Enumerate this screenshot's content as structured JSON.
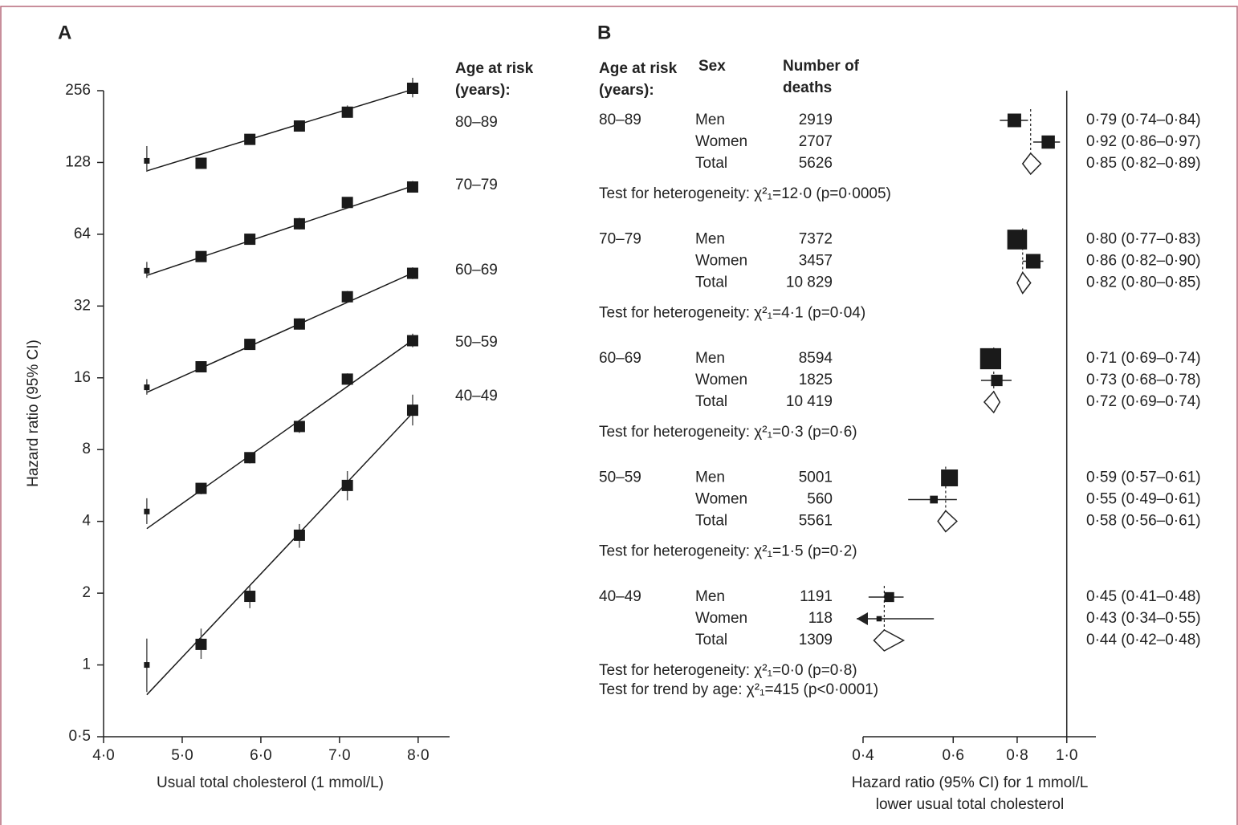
{
  "chart_data": [
    {
      "type": "line",
      "panel_label": "A",
      "x_label": "Usual total cholesterol (1 mmol/L)",
      "y_label": "Hazard ratio (95% CI)",
      "legend_title": [
        "Age at risk",
        "(years):"
      ],
      "log_scale_y": true,
      "color": "#1a1a1a",
      "x": [
        4.55,
        5.24,
        5.86,
        6.49,
        7.1,
        7.93
      ],
      "xlim": [
        4.0,
        8.4
      ],
      "xticks": [
        {
          "value": 4,
          "label": "4·0"
        },
        {
          "value": 5,
          "label": "5·0"
        },
        {
          "value": 6,
          "label": "6·0"
        },
        {
          "value": 7,
          "label": "7·0"
        },
        {
          "value": 8,
          "label": "8·0"
        }
      ],
      "ylim": [
        0.5,
        256
      ],
      "yticks": [
        {
          "value": 0.5,
          "label": "0·5"
        },
        1,
        2,
        4,
        8,
        16,
        32,
        64,
        128,
        256
      ],
      "series": [
        {
          "name": "80–89",
          "values": [
            130,
            127,
            160,
            182,
            208,
            262
          ],
          "ci_low": [
            117,
            122,
            153,
            175,
            198,
            240
          ],
          "ci_high": [
            150,
            133,
            168,
            190,
            222,
            290
          ],
          "fit": {
            "x": [
              4.55,
              7.93
            ],
            "y": [
              118,
              259
            ]
          }
        },
        {
          "name": "70–79",
          "values": [
            45,
            51.6,
            61,
            70.8,
            87,
            101
          ],
          "ci_low": [
            42,
            49,
            58,
            67,
            83,
            96
          ],
          "ci_high": [
            49,
            54,
            64,
            75,
            91,
            107
          ],
          "fit": {
            "x": [
              4.55,
              7.93
            ],
            "y": [
              43,
              102
            ]
          }
        },
        {
          "name": "60–69",
          "values": [
            14.6,
            17.8,
            22.1,
            26.9,
            35,
            43.9
          ],
          "ci_low": [
            13.6,
            17,
            21,
            25.5,
            33,
            41.5
          ],
          "ci_high": [
            15.8,
            18.7,
            23.2,
            28.4,
            37,
            46.5
          ],
          "fit": {
            "x": [
              4.55,
              7.93
            ],
            "y": [
              13.9,
              44
            ]
          }
        },
        {
          "name": "50–59",
          "values": [
            4.4,
            5.5,
            7.4,
            10.0,
            15.8,
            22.9
          ],
          "ci_low": [
            3.9,
            5.2,
            7,
            9.4,
            15,
            21.5
          ],
          "ci_high": [
            5.0,
            5.8,
            7.8,
            10.6,
            16.7,
            24.5
          ],
          "fit": {
            "x": [
              4.55,
              7.93
            ],
            "y": [
              3.73,
              23
            ]
          }
        },
        {
          "name": "40–49",
          "values": [
            1.0,
            1.22,
            1.94,
            3.5,
            5.66,
            11.7
          ],
          "ci_low": [
            0.77,
            1.06,
            1.73,
            3.1,
            4.9,
            10.1
          ],
          "ci_high": [
            1.29,
            1.42,
            2.14,
            3.9,
            6.5,
            13.6
          ],
          "fit": {
            "x": [
              4.55,
              7.93
            ],
            "y": [
              0.75,
              11.4
            ]
          }
        }
      ]
    },
    {
      "type": "forest",
      "panel_label": "B",
      "headers": {
        "age": [
          "Age at risk",
          "(years):"
        ],
        "sex": "Sex",
        "deaths": [
          "Number of",
          "deaths"
        ]
      },
      "x_label": [
        "Hazard ratio (95% CI) for 1 mmol/L",
        "lower usual total cholesterol"
      ],
      "log_scale_x": true,
      "color": "#1a1a1a",
      "reference": 1,
      "xlim": [
        0.4,
        1.14
      ],
      "xticks": [
        {
          "value": 0.4,
          "label": "0·4"
        },
        {
          "value": 0.6,
          "label": "0·6"
        },
        {
          "value": 0.8,
          "label": "0·8"
        },
        {
          "value": 1.0,
          "label": "1·0"
        }
      ],
      "groups": [
        {
          "name": "80–89",
          "heterogeneity": "Test for heterogeneity: χ²₁=12·0 (p=0·0005)",
          "rows": [
            {
              "sex": "Men",
              "deaths": 2919,
              "hr": 0.79,
              "lo": 0.74,
              "hi": 0.84,
              "label": "0·79 (0·74–0·84)"
            },
            {
              "sex": "Women",
              "deaths": 2707,
              "hr": 0.92,
              "lo": 0.86,
              "hi": 0.97,
              "label": "0·92 (0·86–0·97)"
            },
            {
              "sex": "Total",
              "deaths": 5626,
              "hr": 0.85,
              "lo": 0.82,
              "hi": 0.89,
              "label": "0·85 (0·82–0·89)"
            }
          ]
        },
        {
          "name": "70–79",
          "heterogeneity": "Test for heterogeneity: χ²₁=4·1 (p=0·04)",
          "rows": [
            {
              "sex": "Men",
              "deaths": 7372,
              "hr": 0.8,
              "lo": 0.77,
              "hi": 0.83,
              "label": "0·80 (0·77–0·83)"
            },
            {
              "sex": "Women",
              "deaths": 3457,
              "hr": 0.86,
              "lo": 0.82,
              "hi": 0.9,
              "label": "0·86 (0·82–0·90)"
            },
            {
              "sex": "Total",
              "deaths": {
                "value": 10829,
                "label": "10 829"
              },
              "hr": 0.82,
              "lo": 0.8,
              "hi": 0.85,
              "label": "0·82 (0·80–0·85)"
            }
          ]
        },
        {
          "name": "60–69",
          "heterogeneity": "Test for heterogeneity: χ²₁=0·3 (p=0·6)",
          "rows": [
            {
              "sex": "Men",
              "deaths": 8594,
              "hr": 0.71,
              "lo": 0.69,
              "hi": 0.74,
              "label": "0·71 (0·69–0·74)"
            },
            {
              "sex": "Women",
              "deaths": 1825,
              "hr": 0.73,
              "lo": 0.68,
              "hi": 0.78,
              "label": "0·73 (0·68–0·78)"
            },
            {
              "sex": "Total",
              "deaths": {
                "value": 10419,
                "label": "10 419"
              },
              "hr": 0.72,
              "lo": 0.69,
              "hi": 0.74,
              "label": "0·72 (0·69–0·74)"
            }
          ]
        },
        {
          "name": "50–59",
          "heterogeneity": "Test for heterogeneity: χ²₁=1·5 (p=0·2)",
          "rows": [
            {
              "sex": "Men",
              "deaths": 5001,
              "hr": 0.59,
              "lo": 0.57,
              "hi": 0.61,
              "label": "0·59 (0·57–0·61)"
            },
            {
              "sex": "Women",
              "deaths": 560,
              "hr": 0.55,
              "lo": 0.49,
              "hi": 0.61,
              "label": "0·55 (0·49–0·61)"
            },
            {
              "sex": "Total",
              "deaths": 5561,
              "hr": 0.58,
              "lo": 0.56,
              "hi": 0.61,
              "label": "0·58 (0·56–0·61)"
            }
          ]
        },
        {
          "name": "40–49",
          "heterogeneity": "Test for heterogeneity: χ²₁=0·0 (p=0·8)",
          "rows": [
            {
              "sex": "Men",
              "deaths": 1191,
              "hr": 0.45,
              "lo": 0.41,
              "hi": 0.48,
              "label": "0·45 (0·41–0·48)"
            },
            {
              "sex": "Women",
              "deaths": 118,
              "hr": 0.43,
              "lo": 0.34,
              "hi": 0.55,
              "label": "0·43 (0·34–0·55)"
            },
            {
              "sex": "Total",
              "deaths": 1309,
              "hr": 0.44,
              "lo": 0.42,
              "hi": 0.48,
              "label": "0·44 (0·42–0·48)"
            }
          ]
        }
      ],
      "trend": "Test for trend by age: χ²₁=415 (p<0·0001)"
    }
  ]
}
